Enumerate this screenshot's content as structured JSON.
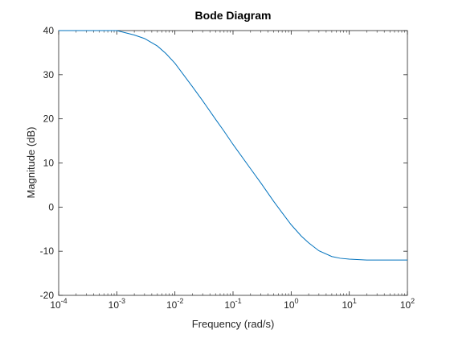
{
  "chart_data": {
    "type": "line",
    "title": "Bode Diagram",
    "xlabel": "Frequency (rad/s)",
    "ylabel": "Magnitude (dB)",
    "x_scale": "log",
    "xlim": [
      0.0001,
      100
    ],
    "ylim": [
      -20,
      40
    ],
    "x_ticks": [
      0.0001,
      0.001,
      0.01,
      0.1,
      1,
      10,
      100
    ],
    "x_tick_labels": [
      {
        "base": "10",
        "exp": "-4"
      },
      {
        "base": "10",
        "exp": "-3"
      },
      {
        "base": "10",
        "exp": "-2"
      },
      {
        "base": "10",
        "exp": "-1"
      },
      {
        "base": "10",
        "exp": "0"
      },
      {
        "base": "10",
        "exp": "1"
      },
      {
        "base": "10",
        "exp": "2"
      }
    ],
    "y_ticks": [
      -20,
      -10,
      0,
      10,
      20,
      30,
      40
    ],
    "y_tick_labels": [
      "-20",
      "-10",
      "0",
      "10",
      "20",
      "30",
      "40"
    ],
    "grid": false,
    "line_color": "#0072BD",
    "series": [
      {
        "x": [
          0.0001,
          0.0002,
          0.0005,
          0.001,
          0.002,
          0.003,
          0.005,
          0.007,
          0.01,
          0.02,
          0.03,
          0.05,
          0.07,
          0.1,
          0.2,
          0.3,
          0.5,
          0.7,
          1,
          1.5,
          2,
          3,
          5,
          7,
          10,
          20,
          50,
          100
        ],
        "values": [
          40,
          40,
          40,
          40,
          39,
          38.2,
          36.5,
          34.8,
          32.6,
          27.3,
          24.1,
          19.9,
          17.2,
          14.2,
          8.7,
          5.5,
          1.3,
          -1.3,
          -4.0,
          -6.6,
          -8.1,
          -9.9,
          -11.2,
          -11.6,
          -11.8,
          -12,
          -12,
          -12
        ]
      }
    ]
  }
}
